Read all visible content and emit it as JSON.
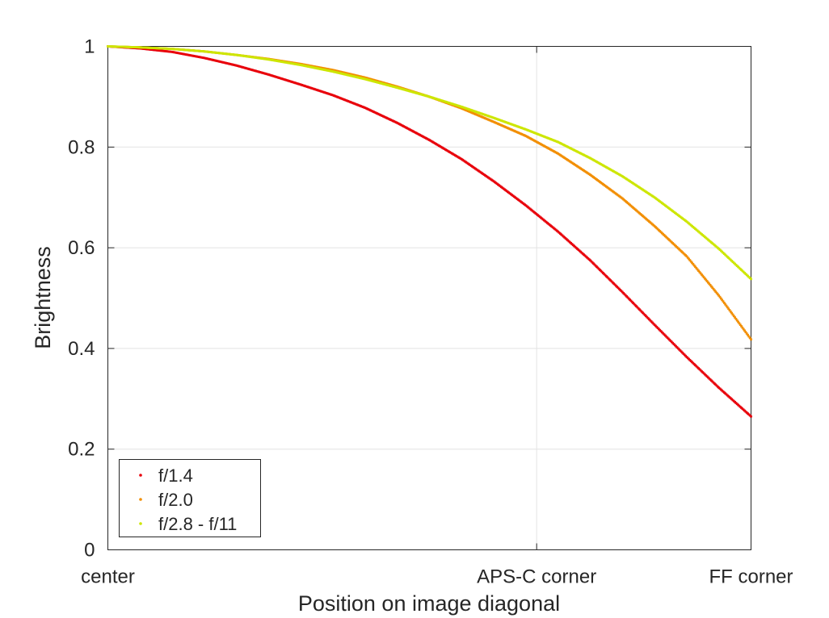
{
  "chart_data": {
    "type": "scatter",
    "title": "",
    "xlabel": "Position on image diagonal",
    "ylabel": "Brightness",
    "xlim": [
      0,
      1
    ],
    "ylim": [
      0,
      1
    ],
    "grid": true,
    "x_ticks": [
      {
        "value": 0,
        "label": "center"
      },
      {
        "value": 0.6667,
        "label": "APS-C corner"
      },
      {
        "value": 1,
        "label": "FF corner"
      }
    ],
    "y_ticks": [
      {
        "value": 0,
        "label": "0"
      },
      {
        "value": 0.2,
        "label": "0.2"
      },
      {
        "value": 0.4,
        "label": "0.4"
      },
      {
        "value": 0.6,
        "label": "0.6"
      },
      {
        "value": 0.8,
        "label": "0.8"
      },
      {
        "value": 1,
        "label": "1"
      }
    ],
    "legend_position": "bottom-left",
    "series": [
      {
        "name": "f/1.4",
        "color": "#e8000b",
        "x": [
          0,
          0.05,
          0.1,
          0.15,
          0.2,
          0.25,
          0.3,
          0.35,
          0.4,
          0.45,
          0.5,
          0.55,
          0.6,
          0.65,
          0.7,
          0.75,
          0.8,
          0.85,
          0.9,
          0.95,
          1
        ],
        "y": [
          1.0,
          0.996,
          0.989,
          0.977,
          0.962,
          0.944,
          0.924,
          0.903,
          0.878,
          0.848,
          0.814,
          0.776,
          0.732,
          0.684,
          0.632,
          0.575,
          0.512,
          0.447,
          0.383,
          0.322,
          0.265
        ]
      },
      {
        "name": "f/2.0",
        "color": "#f28e00",
        "x": [
          0,
          0.05,
          0.1,
          0.15,
          0.2,
          0.25,
          0.3,
          0.35,
          0.4,
          0.45,
          0.5,
          0.55,
          0.6,
          0.65,
          0.7,
          0.75,
          0.8,
          0.85,
          0.9,
          0.95,
          1
        ],
        "y": [
          1.0,
          0.998,
          0.995,
          0.99,
          0.983,
          0.975,
          0.965,
          0.953,
          0.938,
          0.92,
          0.9,
          0.877,
          0.85,
          0.822,
          0.787,
          0.745,
          0.698,
          0.643,
          0.583,
          0.505,
          0.418
        ]
      },
      {
        "name": "f/2.8 - f/11",
        "color": "#cde600",
        "x": [
          0,
          0.05,
          0.1,
          0.15,
          0.2,
          0.25,
          0.3,
          0.35,
          0.4,
          0.45,
          0.5,
          0.55,
          0.6,
          0.65,
          0.7,
          0.75,
          0.8,
          0.85,
          0.9,
          0.95,
          1
        ],
        "y": [
          1.0,
          0.998,
          0.995,
          0.99,
          0.983,
          0.974,
          0.963,
          0.95,
          0.935,
          0.918,
          0.9,
          0.88,
          0.858,
          0.835,
          0.81,
          0.778,
          0.742,
          0.7,
          0.652,
          0.598,
          0.538
        ]
      }
    ]
  }
}
